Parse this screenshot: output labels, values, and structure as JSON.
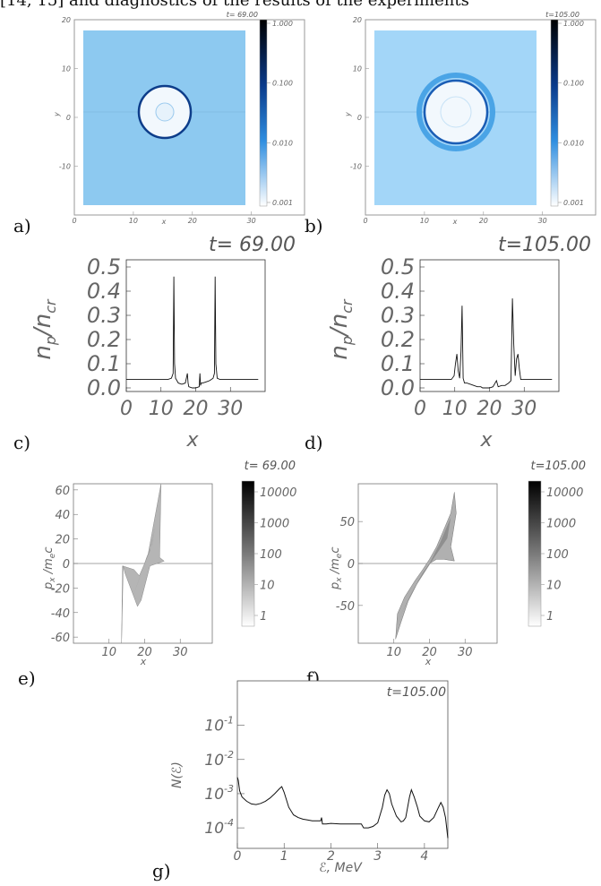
{
  "top_text": "[14, 15] and diagnostics of the results of the experiments",
  "panel_labels": [
    "a)",
    "b)",
    "c)",
    "d)",
    "e)",
    "f)",
    "g)"
  ],
  "chart_data": [
    {
      "id": "a",
      "type": "heatmap",
      "title": "t= 69.00",
      "xlabel": "x",
      "ylabel": "y",
      "xlim": [
        0,
        39
      ],
      "ylim": [
        -20,
        20
      ],
      "xticks": [
        "0",
        "10",
        "20",
        "30"
      ],
      "yticks": [
        "20",
        "10",
        "0",
        "-10"
      ],
      "colorbar_ticks": [
        "1.000",
        "0.100",
        "0.010",
        "0.001"
      ],
      "colorbar_scale": "log",
      "colors": {
        "background": "#8dc9f0",
        "shell": "#0d3d8a",
        "inner": "#f2f8fd",
        "core": "#e6f2fb"
      }
    },
    {
      "id": "b",
      "type": "heatmap",
      "title": "t=105.00",
      "xlabel": "x",
      "ylabel": "y",
      "xlim": [
        0,
        39
      ],
      "ylim": [
        -20,
        20
      ],
      "xticks": [
        "0",
        "10",
        "20",
        "30"
      ],
      "yticks": [
        "20",
        "10",
        "0",
        "-10"
      ],
      "colorbar_ticks": [
        "1.000",
        "0.100",
        "0.010",
        "0.001"
      ],
      "colorbar_scale": "log",
      "colors": {
        "background": "#a3d6f8",
        "shell": "#1a5db5",
        "outer": "#4aa4e6",
        "inner": "#f2f8fd"
      }
    },
    {
      "id": "c",
      "type": "line",
      "title": "t=  69.00",
      "xlabel": "x",
      "ylabel": "n_p/n_cr",
      "xlim": [
        0,
        40
      ],
      "ylim": [
        0,
        0.5
      ],
      "xticks": [
        "0",
        "10",
        "20",
        "30"
      ],
      "yticks": [
        "0.5",
        "0.4",
        "0.3",
        "0.2",
        "0.1",
        "0.0"
      ],
      "x": [
        0,
        1,
        2,
        3,
        4,
        5,
        6,
        7,
        8,
        9,
        10,
        11,
        12,
        13,
        13.5,
        13.7,
        13.9,
        14.2,
        15,
        16,
        17,
        17.6,
        17.8,
        18,
        19,
        20,
        21,
        21.2,
        21.4,
        21.6,
        22,
        23,
        24,
        25,
        25.4,
        25.6,
        25.8,
        26.2,
        27,
        28,
        29,
        30,
        31,
        32,
        33,
        34,
        35,
        36,
        37,
        38
      ],
      "values": [
        0.035,
        0.035,
        0.035,
        0.035,
        0.035,
        0.035,
        0.035,
        0.035,
        0.035,
        0.035,
        0.035,
        0.035,
        0.035,
        0.04,
        0.06,
        0.46,
        0.1,
        0.04,
        0.02,
        0.015,
        0.02,
        0.06,
        0.02,
        0.005,
        0.0,
        0.0,
        0.005,
        0.06,
        0.01,
        0.02,
        0.02,
        0.025,
        0.03,
        0.04,
        0.06,
        0.46,
        0.1,
        0.04,
        0.035,
        0.035,
        0.035,
        0.035,
        0.035,
        0.035,
        0.035,
        0.035,
        0.035,
        0.035,
        0.035,
        0.035
      ]
    },
    {
      "id": "d",
      "type": "line",
      "title": "t=105.00",
      "xlabel": "x",
      "ylabel": "n_p/n_cr",
      "xlim": [
        0,
        40
      ],
      "ylim": [
        0,
        0.5
      ],
      "xticks": [
        "0",
        "10",
        "20",
        "30"
      ],
      "yticks": [
        "0.5",
        "0.4",
        "0.3",
        "0.2",
        "0.1",
        "0.0"
      ],
      "x": [
        0,
        1,
        2,
        3,
        4,
        5,
        6,
        7,
        8,
        9,
        9.8,
        10.2,
        10.6,
        11,
        11.4,
        11.8,
        12.1,
        12.4,
        12.8,
        13.5,
        14.5,
        15.5,
        16.5,
        17.5,
        18,
        19,
        20,
        21,
        22,
        22.5,
        23.5,
        24.5,
        25.5,
        26.2,
        26.6,
        27,
        27.4,
        27.8,
        28.2,
        28.6,
        29,
        30,
        31,
        32,
        33,
        34,
        35,
        36,
        37,
        38
      ],
      "values": [
        0.035,
        0.035,
        0.035,
        0.035,
        0.035,
        0.035,
        0.035,
        0.035,
        0.035,
        0.035,
        0.05,
        0.1,
        0.14,
        0.07,
        0.04,
        0.15,
        0.34,
        0.04,
        0.02,
        0.02,
        0.015,
        0.01,
        0.005,
        0.005,
        0.0,
        0.0,
        0.0,
        0.005,
        0.03,
        0.005,
        0.01,
        0.01,
        0.02,
        0.03,
        0.37,
        0.18,
        0.05,
        0.12,
        0.14,
        0.08,
        0.035,
        0.035,
        0.035,
        0.035,
        0.035,
        0.035,
        0.035,
        0.035,
        0.035,
        0.035
      ]
    },
    {
      "id": "e",
      "type": "heatmap",
      "title": "t=  69.00",
      "xlabel": "x",
      "ylabel": "p_x/m_e c",
      "xlim": [
        0,
        39
      ],
      "ylim": [
        -65,
        65
      ],
      "xticks": [
        "10",
        "20",
        "30"
      ],
      "yticks": [
        "60",
        "40",
        "20",
        "0",
        "-20",
        "-40",
        "-60"
      ],
      "colorbar_ticks": [
        "10000",
        "1000",
        "100",
        "10",
        "1"
      ],
      "colorbar_scale": "log"
    },
    {
      "id": "f",
      "type": "heatmap",
      "title": "t=105.00",
      "xlabel": "x",
      "ylabel": "p_x/m_e c",
      "xlim": [
        0,
        39
      ],
      "ylim": [
        -95,
        95
      ],
      "xticks": [
        "10",
        "20",
        "30"
      ],
      "yticks": [
        "50",
        "0",
        "-50"
      ],
      "colorbar_ticks": [
        "10000",
        "1000",
        "100",
        "10",
        "1"
      ],
      "colorbar_scale": "log"
    },
    {
      "id": "g",
      "type": "line",
      "title": "t=105.00",
      "xlabel": "ℰ, MeV",
      "ylabel": "N(ℰ)",
      "xlim": [
        0,
        4.5
      ],
      "ylim_log10": [
        -4.6,
        0.3
      ],
      "yscale": "log",
      "xticks": [
        "0",
        "1",
        "2",
        "3",
        "4"
      ],
      "yticks": [
        "10^-1",
        "10^-2",
        "10^-3",
        "10^-4"
      ],
      "x": [
        0,
        0.02,
        0.05,
        0.1,
        0.2,
        0.3,
        0.4,
        0.5,
        0.6,
        0.7,
        0.8,
        0.9,
        0.95,
        1.0,
        1.1,
        1.2,
        1.3,
        1.4,
        1.5,
        1.6,
        1.7,
        1.78,
        1.8,
        1.82,
        1.9,
        2.0,
        2.2,
        2.4,
        2.6,
        2.65,
        2.7,
        2.8,
        2.9,
        3.0,
        3.1,
        3.15,
        3.2,
        3.25,
        3.3,
        3.4,
        3.5,
        3.55,
        3.6,
        3.68,
        3.72,
        3.78,
        3.85,
        3.9,
        4.0,
        4.1,
        4.2,
        4.3,
        4.35,
        4.4,
        4.45,
        4.5
      ],
      "values": [
        0.003,
        0.0025,
        0.0012,
        0.0008,
        0.0006,
        0.0005,
        0.00048,
        0.00052,
        0.0006,
        0.00075,
        0.001,
        0.0014,
        0.0016,
        0.0011,
        0.0004,
        0.00024,
        0.0002,
        0.00018,
        0.00017,
        0.00016,
        0.00016,
        0.00016,
        0.0002,
        0.00013,
        0.00013,
        0.000135,
        0.00013,
        0.00013,
        0.00013,
        0.00013,
        0.0001,
        0.0001,
        0.00011,
        0.00014,
        0.0004,
        0.0009,
        0.0013,
        0.001,
        0.0005,
        0.00022,
        0.00015,
        0.00016,
        0.0002,
        0.0008,
        0.0013,
        0.0008,
        0.0004,
        0.00022,
        0.00016,
        0.00015,
        0.0002,
        0.0004,
        0.00055,
        0.0004,
        0.0002,
        5e-05
      ]
    }
  ]
}
